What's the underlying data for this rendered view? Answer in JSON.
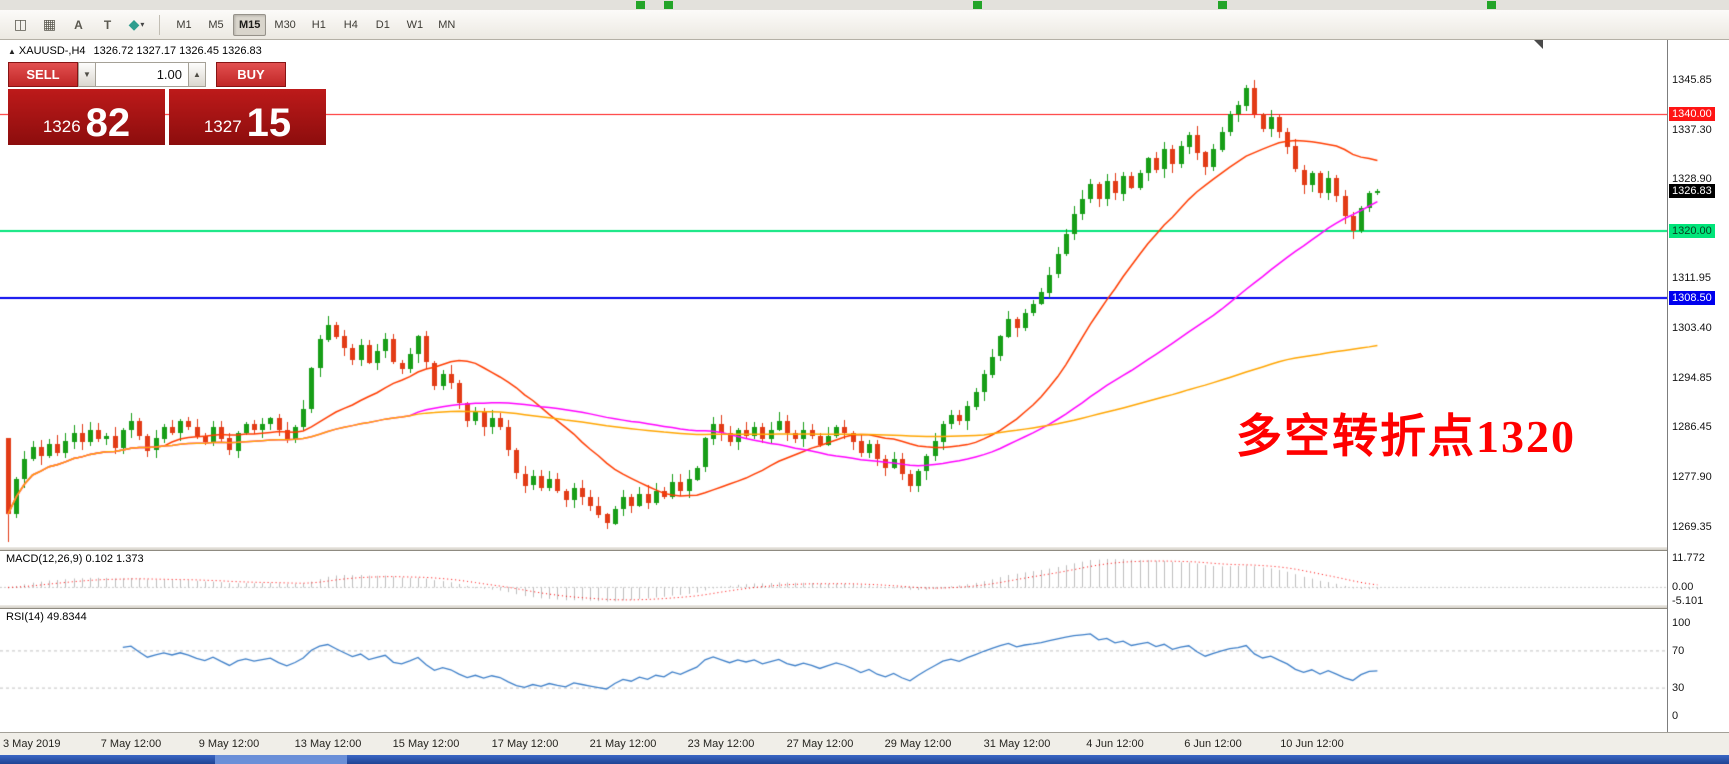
{
  "toolbar": {
    "tools": [
      {
        "name": "candlestick-tool-icon",
        "glyph": "◫"
      },
      {
        "name": "grid-icon",
        "glyph": "▦"
      },
      {
        "name": "text-label-icon",
        "glyph": "A"
      },
      {
        "name": "text-box-icon",
        "glyph": "T"
      },
      {
        "name": "shapes-dropdown-icon",
        "glyph": "◆",
        "caret": "▾",
        "color": "#2f9e8f"
      }
    ],
    "timeframes": [
      {
        "label": "M1",
        "active": false
      },
      {
        "label": "M5",
        "active": false
      },
      {
        "label": "M15",
        "active": true
      },
      {
        "label": "M30",
        "active": false
      },
      {
        "label": "H1",
        "active": false
      },
      {
        "label": "H4",
        "active": false
      },
      {
        "label": "D1",
        "active": false
      },
      {
        "label": "W1",
        "active": false
      },
      {
        "label": "MN",
        "active": false
      }
    ]
  },
  "chart": {
    "header": {
      "collapse_triangle": "▲",
      "symbol_period": "XAUUSD-,H4",
      "ohlc": "1326.72 1327.17 1326.45 1326.83"
    },
    "one_click": {
      "sell_label": "SELL",
      "buy_label": "BUY",
      "volume": "1.00",
      "spin_down": "▼",
      "spin_up": "▲",
      "bid_big": "1326",
      "bid_pips": "82",
      "ask_big": "1327",
      "ask_pips": "15"
    },
    "annotation": {
      "text": "多空转折点1320",
      "color": "#ff0000"
    }
  },
  "chart_data": {
    "type": "candlestick",
    "symbol": "XAUUSD-",
    "timeframe": "H4",
    "title": "XAUUSD- H4 chart, 3 May 2019 - 11 Jun 2019",
    "displayed_ohlc": {
      "open": "1326.72",
      "high": "1327.17",
      "low": "1326.45",
      "close": "1326.83"
    },
    "closes": [
      1271.5,
      1277.5,
      1281.0,
      1283.0,
      1281.5,
      1283.5,
      1282.0,
      1284.0,
      1285.5,
      1284.0,
      1286.0,
      1284.5,
      1285.0,
      1283.0,
      1286.0,
      1287.5,
      1285.0,
      1282.5,
      1284.5,
      1286.5,
      1285.5,
      1287.5,
      1286.5,
      1285.0,
      1284.0,
      1286.5,
      1284.5,
      1282.5,
      1285.5,
      1287.0,
      1286.0,
      1287.0,
      1288.0,
      1286.0,
      1284.5,
      1286.5,
      1289.5,
      1296.5,
      1301.5,
      1304.0,
      1302.0,
      1300.0,
      1298.0,
      1300.5,
      1297.5,
      1299.5,
      1301.5,
      1297.5,
      1296.5,
      1299.0,
      1302.0,
      1297.5,
      1293.5,
      1295.5,
      1294.0,
      1290.5,
      1287.5,
      1289.0,
      1286.5,
      1288.0,
      1286.5,
      1282.5,
      1278.5,
      1276.5,
      1278.0,
      1276.0,
      1277.5,
      1275.5,
      1274.0,
      1276.0,
      1274.5,
      1273.0,
      1271.5,
      1270.0,
      1272.5,
      1274.5,
      1273.0,
      1275.0,
      1273.5,
      1275.5,
      1274.5,
      1277.0,
      1275.5,
      1277.5,
      1279.5,
      1284.5,
      1287.0,
      1285.5,
      1284.0,
      1286.0,
      1285.0,
      1286.5,
      1284.5,
      1286.0,
      1287.5,
      1285.5,
      1284.5,
      1286.0,
      1285.0,
      1283.5,
      1285.0,
      1286.5,
      1285.5,
      1284.0,
      1282.0,
      1283.5,
      1281.0,
      1279.5,
      1281.0,
      1278.5,
      1276.5,
      1279.0,
      1281.5,
      1284.0,
      1287.0,
      1288.5,
      1287.5,
      1290.0,
      1292.5,
      1295.5,
      1298.5,
      1302.0,
      1305.0,
      1303.5,
      1306.0,
      1307.5,
      1309.5,
      1312.5,
      1316.0,
      1319.5,
      1323.0,
      1325.5,
      1328.0,
      1325.5,
      1328.5,
      1326.5,
      1329.5,
      1327.5,
      1330.0,
      1332.5,
      1330.5,
      1334.0,
      1331.5,
      1334.5,
      1336.5,
      1333.5,
      1331.0,
      1334.0,
      1337.0,
      1340.0,
      1341.5,
      1344.5,
      1340.0,
      1337.5,
      1339.5,
      1337.0,
      1334.5,
      1330.5,
      1328.0,
      1330.0,
      1326.5,
      1329.0,
      1326.0,
      1322.5,
      1320.0,
      1324.0,
      1326.5,
      1326.83
    ],
    "overrides": [
      {
        "bar": 0,
        "open": 1284.5,
        "low": 1266.8
      },
      {
        "bar": 151,
        "high": 1345.0
      },
      {
        "bar": 152,
        "high": 1345.85
      }
    ],
    "up_color": "#179e17",
    "down_color": "#e23b16",
    "price_axis_ticks": [
      {
        "text": "1345.85",
        "price": 1345.85
      },
      {
        "text": "1337.30",
        "price": 1337.3
      },
      {
        "text": "1328.90",
        "price": 1328.9
      },
      {
        "text": "1311.95",
        "price": 1311.95
      },
      {
        "text": "1303.40",
        "price": 1303.4
      },
      {
        "text": "1294.85",
        "price": 1294.85
      },
      {
        "text": "1286.45",
        "price": 1286.45
      },
      {
        "text": "1277.90",
        "price": 1277.9
      },
      {
        "text": "1269.35",
        "price": 1269.35
      }
    ],
    "axis_special_labels": [
      {
        "text": "1340.00",
        "price": 1340.0,
        "bg": "#ff1414",
        "fg": "#ffffff"
      },
      {
        "text": "1326.83",
        "price": 1326.83,
        "bg": "#000000",
        "fg": "#ffffff"
      },
      {
        "text": "1320.00",
        "price": 1320.0,
        "bg": "#00e57a",
        "fg": "#083b1f"
      },
      {
        "text": "1308.50",
        "price": 1308.5,
        "bg": "#0000ee",
        "fg": "#ffffff"
      }
    ],
    "horizontal_lines": [
      {
        "price": 1340.0,
        "color": "#ff1414",
        "width": 1
      },
      {
        "price": 1320.0,
        "color": "#00e57a",
        "width": 2
      },
      {
        "price": 1308.5,
        "color": "#0000ee",
        "width": 2
      }
    ],
    "moving_averages": [
      {
        "period": 20,
        "color": "#ff3c00"
      },
      {
        "period": 50,
        "color": "#ff00ff"
      },
      {
        "period": 120,
        "color": "#ffa500"
      }
    ],
    "indicators": [
      {
        "name": "MACD",
        "params": "12,26,9",
        "label": "MACD(12,26,9) 0.102 1.373",
        "axis": [
          {
            "text": "11.772",
            "value": 11.772
          },
          {
            "text": "0.00",
            "value": 0.0
          },
          {
            "text": "-5.101",
            "value": -5.101
          }
        ],
        "histogram_color": "#bdbdbd",
        "signal_color": "#ff0000"
      },
      {
        "name": "RSI",
        "params": "14",
        "label": "RSI(14) 49.8344",
        "axis": [
          {
            "text": "100",
            "value": 100
          },
          {
            "text": "70",
            "value": 70
          },
          {
            "text": "30",
            "value": 30
          },
          {
            "text": "0",
            "value": 0
          }
        ],
        "levels": [
          70,
          30
        ],
        "line_color": "#3c7ec8"
      }
    ],
    "time_labels": [
      {
        "bar": 0,
        "text": "3 May 2019"
      },
      {
        "bar": 15,
        "text": "7 May 12:00"
      },
      {
        "bar": 27,
        "text": "9 May 12:00"
      },
      {
        "bar": 39,
        "text": "13 May 12:00"
      },
      {
        "bar": 51,
        "text": "15 May 12:00"
      },
      {
        "bar": 63,
        "text": "17 May 12:00"
      },
      {
        "bar": 75,
        "text": "21 May 12:00"
      },
      {
        "bar": 87,
        "text": "23 May 12:00"
      },
      {
        "bar": 99,
        "text": "27 May 12:00"
      },
      {
        "bar": 111,
        "text": "29 May 12:00"
      },
      {
        "bar": 123,
        "text": "31 May 12:00"
      },
      {
        "bar": 135,
        "text": "4 Jun 12:00"
      },
      {
        "bar": 147,
        "text": "6 Jun 12:00"
      },
      {
        "bar": 159,
        "text": "10 Jun 12:00"
      }
    ]
  }
}
